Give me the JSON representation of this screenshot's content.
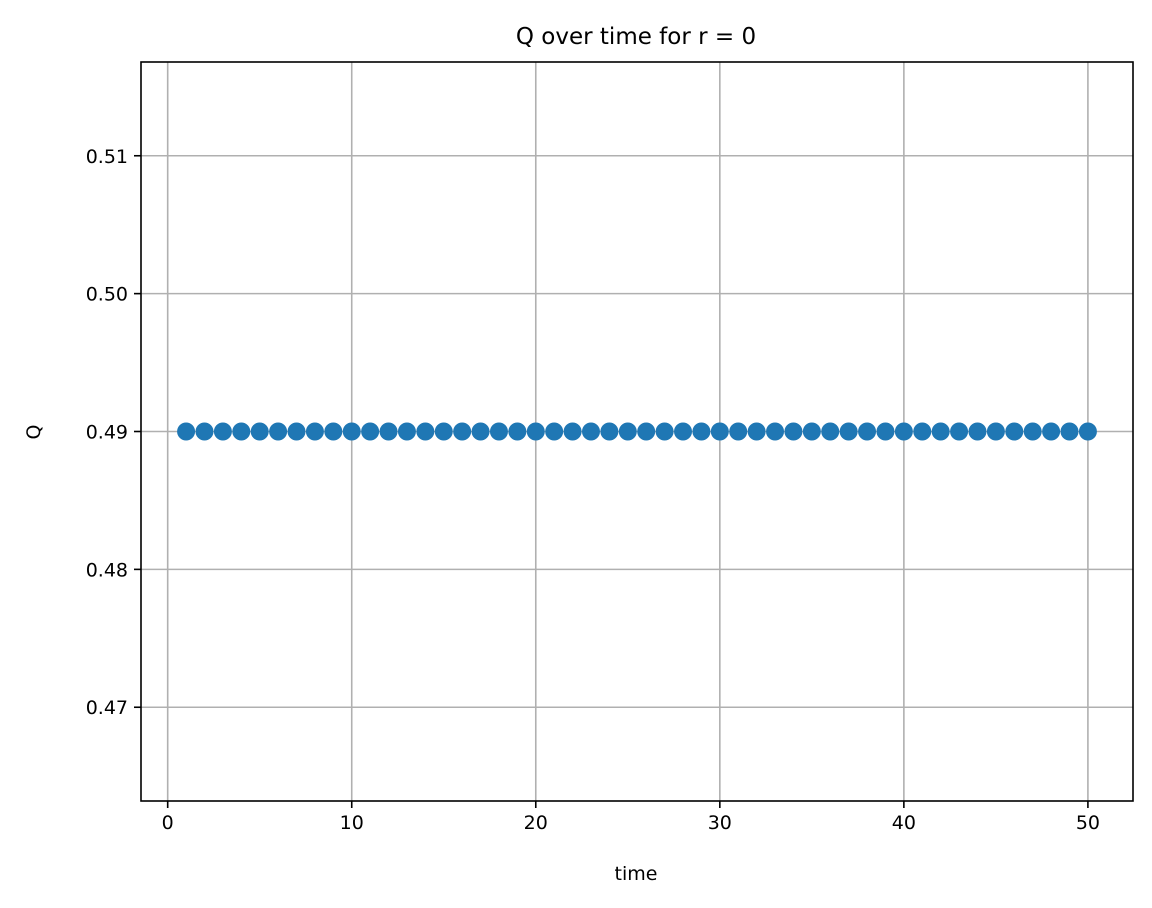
{
  "chart_data": {
    "type": "scatter",
    "title": "Q over time for r = 0",
    "xlabel": "time",
    "ylabel": "Q",
    "xlim": [
      -1.45,
      52.45
    ],
    "ylim": [
      0.4632,
      0.5168
    ],
    "xticks": [
      0,
      10,
      20,
      30,
      40,
      50
    ],
    "xtick_labels": [
      "0",
      "10",
      "20",
      "30",
      "40",
      "50"
    ],
    "yticks": [
      0.47,
      0.48,
      0.49,
      0.5,
      0.51
    ],
    "ytick_labels": [
      "0.47",
      "0.48",
      "0.49",
      "0.50",
      "0.51"
    ],
    "grid": true,
    "legend": null,
    "series": [
      {
        "color": "#1f77b4",
        "marker": "circle",
        "x": [
          1,
          2,
          3,
          4,
          5,
          6,
          7,
          8,
          9,
          10,
          11,
          12,
          13,
          14,
          15,
          16,
          17,
          18,
          19,
          20,
          21,
          22,
          23,
          24,
          25,
          26,
          27,
          28,
          29,
          30,
          31,
          32,
          33,
          34,
          35,
          36,
          37,
          38,
          39,
          40,
          41,
          42,
          43,
          44,
          45,
          46,
          47,
          48,
          49,
          50
        ],
        "y": [
          0.49,
          0.49,
          0.49,
          0.49,
          0.49,
          0.49,
          0.49,
          0.49,
          0.49,
          0.49,
          0.49,
          0.49,
          0.49,
          0.49,
          0.49,
          0.49,
          0.49,
          0.49,
          0.49,
          0.49,
          0.49,
          0.49,
          0.49,
          0.49,
          0.49,
          0.49,
          0.49,
          0.49,
          0.49,
          0.49,
          0.49,
          0.49,
          0.49,
          0.49,
          0.49,
          0.49,
          0.49,
          0.49,
          0.49,
          0.49,
          0.49,
          0.49,
          0.49,
          0.49,
          0.49,
          0.49,
          0.49,
          0.49,
          0.49,
          0.49
        ]
      }
    ]
  }
}
